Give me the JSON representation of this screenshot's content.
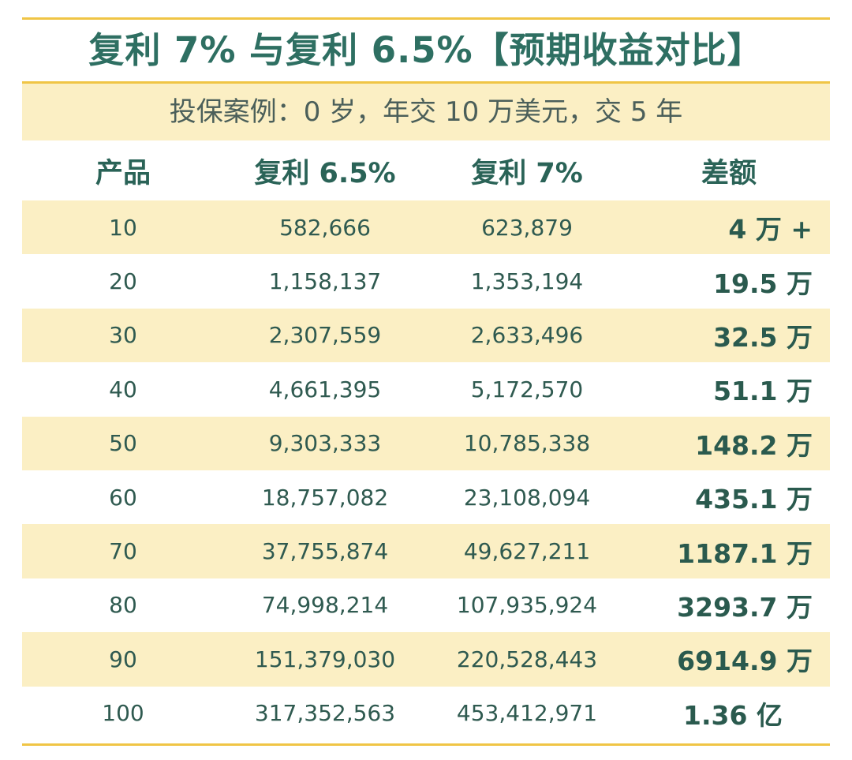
{
  "title": "复利 7% 与复利 6.5%【预期收益对比】",
  "subtitle": "投保案例：0 岁，年交 10 万美元，交 5 年",
  "table": {
    "headers": [
      "产品",
      "复利 6.5%",
      "复利 7%",
      "差额"
    ],
    "rows": [
      {
        "product": "10",
        "rate65": "582,666",
        "rate7": "623,879",
        "diff": "4 万 +"
      },
      {
        "product": "20",
        "rate65": "1,158,137",
        "rate7": "1,353,194",
        "diff": "19.5 万"
      },
      {
        "product": "30",
        "rate65": "2,307,559",
        "rate7": "2,633,496",
        "diff": "32.5 万"
      },
      {
        "product": "40",
        "rate65": "4,661,395",
        "rate7": "5,172,570",
        "diff": "51.1 万"
      },
      {
        "product": "50",
        "rate65": "9,303,333",
        "rate7": "10,785,338",
        "diff": "148.2 万"
      },
      {
        "product": "60",
        "rate65": "18,757,082",
        "rate7": "23,108,094",
        "diff": "435.1 万"
      },
      {
        "product": "70",
        "rate65": "37,755,874",
        "rate7": "49,627,211",
        "diff": "1187.1 万"
      },
      {
        "product": "80",
        "rate65": "74,998,214",
        "rate7": "107,935,924",
        "diff": "3293.7 万"
      },
      {
        "product": "90",
        "rate65": "151,379,030",
        "rate7": "220,528,443",
        "diff": "6914.9 万"
      },
      {
        "product": "100",
        "rate65": "317,352,563",
        "rate7": "453,412,971",
        "diff": "1.36 亿"
      }
    ]
  },
  "colors": {
    "accent_rule": "#f0c545",
    "band": "#fbefc4",
    "title": "#2e6f62",
    "text": "#2f5a50"
  }
}
